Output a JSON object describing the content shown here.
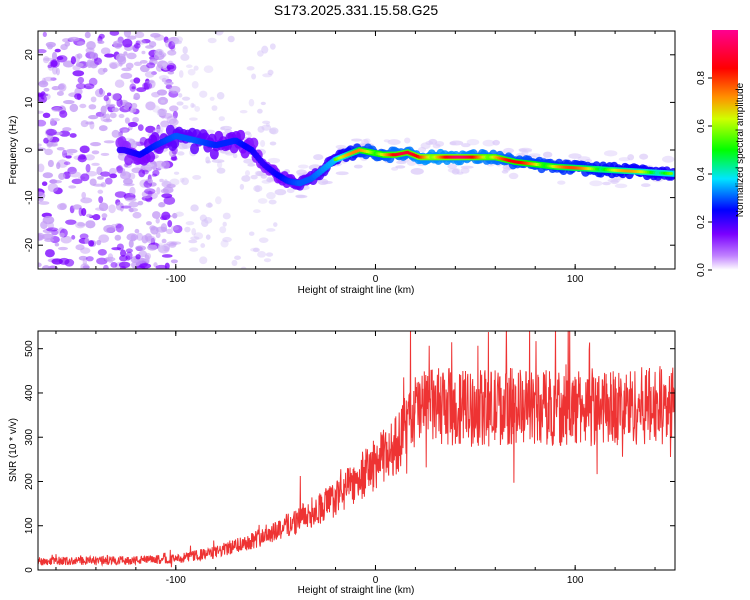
{
  "title": "S173.2025.331.15.58.G25",
  "chart_data": [
    {
      "type": "heatmap",
      "name": "spectrogram",
      "xlabel": "Height of straight line (km)",
      "ylabel": "Frequency (Hz)",
      "xlim": [
        -169,
        150
      ],
      "ylim": [
        -25,
        25
      ],
      "xticks": [
        -100,
        0,
        100
      ],
      "xtick_labels": [
        "-100",
        "0",
        "100"
      ],
      "yticks": [
        -20,
        -10,
        0,
        10,
        20
      ],
      "ytick_labels": [
        "-20",
        "-10",
        "0",
        "10",
        "20"
      ],
      "ridge_x": [
        -126,
        -118,
        -110,
        -100,
        -90,
        -80,
        -70,
        -62,
        -56,
        -50,
        -44,
        -38,
        -32,
        -26,
        -20,
        -14,
        -8,
        -2,
        4,
        10,
        16,
        22,
        40,
        60,
        70,
        90,
        110,
        130,
        150
      ],
      "ridge_y": [
        0,
        -1,
        1,
        3,
        2,
        1,
        2,
        0,
        -3,
        -5,
        -6.5,
        -7,
        -6,
        -4,
        -2,
        -1,
        0,
        -0.5,
        -1,
        -1,
        -0.5,
        -1.5,
        -1.5,
        -1.5,
        -2.5,
        -3.5,
        -4,
        -4.5,
        -5
      ],
      "ridge_strength": [
        0.35,
        0.4,
        0.45,
        0.5,
        0.5,
        0.45,
        0.45,
        0.4,
        0.35,
        0.4,
        0.45,
        0.5,
        0.5,
        0.55,
        0.6,
        0.7,
        0.8,
        0.85,
        0.85,
        0.9,
        0.9,
        0.95,
        0.95,
        0.9,
        0.85,
        0.8,
        0.75,
        0.7,
        0.65
      ]
    },
    {
      "type": "line",
      "name": "snr",
      "series": [
        {
          "name": "SNR",
          "color": "#ee3333"
        }
      ],
      "xlabel": "Height of straight line (km)",
      "ylabel": "SNR (10 * v/v)",
      "xlim": [
        -169,
        150
      ],
      "ylim": [
        0,
        540
      ],
      "xticks": [
        -100,
        0,
        100
      ],
      "xtick_labels": [
        "-100",
        "0",
        "100"
      ],
      "yticks": [
        0,
        100,
        200,
        300,
        400,
        500
      ],
      "ytick_labels": [
        "0",
        "100",
        "200",
        "300",
        "400",
        "500"
      ],
      "trend_x": [
        -169,
        -120,
        -100,
        -80,
        -60,
        -40,
        -20,
        -10,
        0,
        10,
        20,
        30,
        50,
        70,
        100,
        130,
        150
      ],
      "trend_y": [
        20,
        22,
        25,
        40,
        70,
        110,
        160,
        200,
        240,
        280,
        360,
        370,
        365,
        370,
        365,
        370,
        375
      ]
    }
  ],
  "colorbar": {
    "label": "Normalized spectral amplitude",
    "ticks": [
      0.0,
      0.2,
      0.4,
      0.6,
      0.8
    ],
    "tick_labels": [
      "0.0",
      "0.2",
      "0.4",
      "0.6",
      "0.8"
    ],
    "range": [
      0,
      1
    ],
    "colormap": [
      "#ffffff",
      "#8a2be2",
      "#0000ff",
      "#00ffff",
      "#00ff00",
      "#ffff00",
      "#ff8000",
      "#ff0000",
      "#ff0090"
    ]
  }
}
